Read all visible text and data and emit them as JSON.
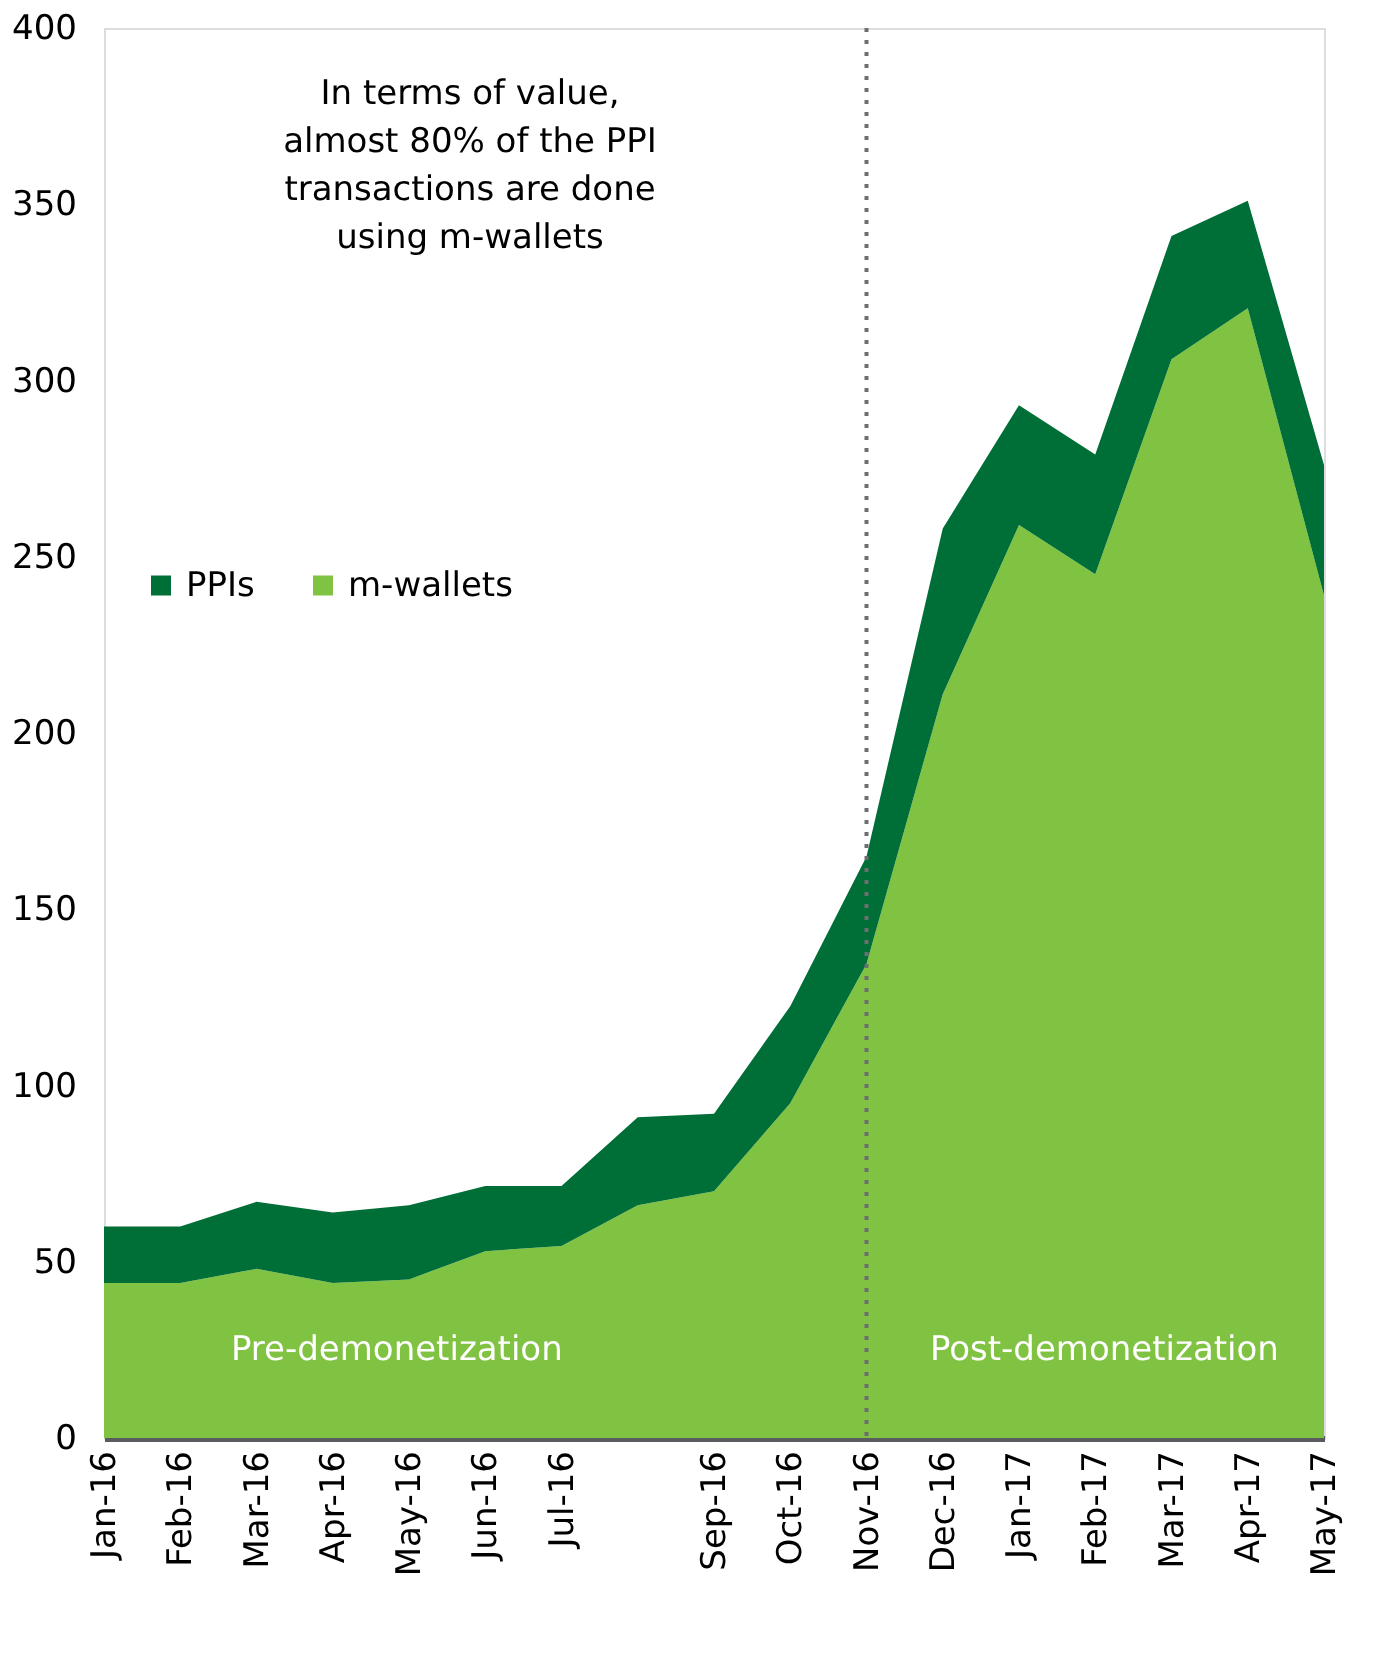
{
  "chart_data": {
    "type": "area",
    "stacked": true,
    "categories": [
      "Jan-16",
      "Feb-16",
      "Mar-16",
      "Apr-16",
      "May-16",
      "Jun-16",
      "Jul-16",
      null,
      "Sep-16",
      "Oct-16",
      "Nov-16",
      "Dec-16",
      "Jan-17",
      "Feb-17",
      "Mar-17",
      "Apr-17",
      "May-17"
    ],
    "series": [
      {
        "name": "m-wallets",
        "color": "#80c242",
        "values": [
          44,
          44,
          48,
          44,
          45,
          53,
          54.5,
          66,
          70,
          95,
          134.5,
          211,
          259,
          245,
          306,
          320.5,
          239
        ]
      },
      {
        "name": "PPIs",
        "color": "#006f37",
        "values": [
          16,
          16,
          19,
          20,
          21,
          18.5,
          17,
          25,
          22,
          27.5,
          30.5,
          47,
          34,
          34,
          35,
          30.5,
          37
        ]
      }
    ],
    "ylim": [
      0,
      400
    ],
    "yticks": [
      0,
      50,
      100,
      150,
      200,
      250,
      300,
      350,
      400
    ],
    "grid": false,
    "legend": "left",
    "ref_lines": [
      {
        "axis": "x",
        "value": "Nov-16",
        "color": "#6d6e71",
        "line_style": "dotted"
      }
    ],
    "annotations": [
      "In terms of value,\nalmost 80% of the PPI\ntransactions are done\nusing m-wallets",
      "Pre-demonetization",
      "Post-demonetization"
    ]
  }
}
